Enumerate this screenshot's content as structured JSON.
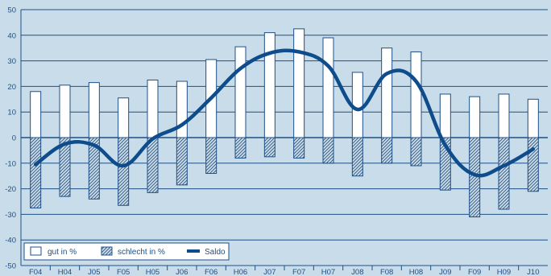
{
  "chart_data": {
    "type": "bar",
    "title": "",
    "xlabel": "",
    "ylabel": "",
    "ylim": [
      -50,
      50
    ],
    "yticks": [
      50,
      40,
      30,
      20,
      10,
      0,
      -10,
      -20,
      -30,
      -40,
      -50
    ],
    "categories": [
      "F04",
      "H04",
      "J05",
      "F05",
      "H05",
      "J06",
      "F06",
      "H06",
      "J07",
      "F07",
      "H07",
      "J08",
      "F08",
      "H08",
      "J09",
      "F09",
      "H09",
      "J10"
    ],
    "series": [
      {
        "name": "gut in %",
        "kind": "bar",
        "values": [
          18,
          20.5,
          21.5,
          15.5,
          22.5,
          22,
          30.5,
          35.5,
          41,
          42.5,
          39,
          25.5,
          35,
          33.5,
          17,
          16,
          17,
          15
        ]
      },
      {
        "name": "schlecht in %",
        "kind": "bar-hatched",
        "values": [
          -27.5,
          -23,
          -24,
          -26.5,
          -21.5,
          -18.5,
          -14,
          -8,
          -7.5,
          -8,
          -10,
          -15,
          -10,
          -11,
          -20.5,
          -31,
          -28,
          -21
        ]
      },
      {
        "name": "Saldo",
        "kind": "line",
        "values": [
          -10.5,
          -2.5,
          -3,
          -11,
          -0.5,
          5,
          15.5,
          27,
          33,
          33.5,
          28,
          11,
          25,
          22,
          -3,
          -14.5,
          -11,
          -4.5
        ]
      }
    ],
    "legend_position": "bottom-left",
    "grid": true,
    "colors": {
      "background": "#c9dcea",
      "grid": "#1f4f86",
      "bar_fill": "#ffffff",
      "bar_stroke": "#1f4f86",
      "line": "#0e4c8c",
      "text": "#1f4f86"
    }
  },
  "legend": {
    "gut": "gut in %",
    "schlecht": "schlecht in %",
    "saldo": "Saldo"
  }
}
